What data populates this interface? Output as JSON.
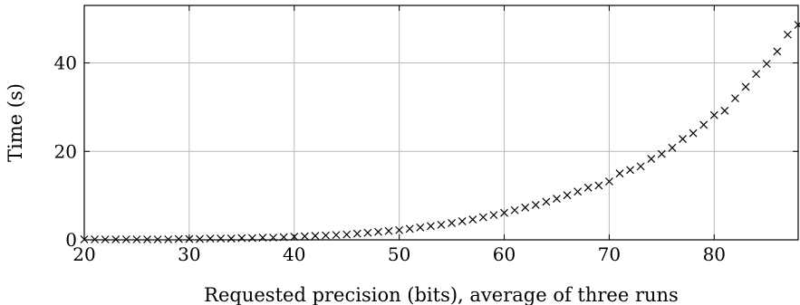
{
  "chart_data": {
    "type": "scatter",
    "title": "",
    "xlabel": "Requested precision (bits), average of three runs",
    "ylabel": "Time (s)",
    "xlim": [
      20,
      88
    ],
    "ylim": [
      0,
      53
    ],
    "grid": true,
    "marker": "x",
    "x_ticks": [
      20,
      30,
      40,
      50,
      60,
      70,
      80
    ],
    "y_ticks": [
      0,
      20,
      40
    ],
    "series": [
      {
        "name": "",
        "points": [
          [
            20,
            0.1
          ],
          [
            21,
            0.1
          ],
          [
            22,
            0.1
          ],
          [
            23,
            0.1
          ],
          [
            24,
            0.1
          ],
          [
            25,
            0.1
          ],
          [
            26,
            0.1
          ],
          [
            27,
            0.1
          ],
          [
            28,
            0.1
          ],
          [
            29,
            0.2
          ],
          [
            30,
            0.2
          ],
          [
            31,
            0.2
          ],
          [
            32,
            0.3
          ],
          [
            33,
            0.3
          ],
          [
            34,
            0.3
          ],
          [
            35,
            0.4
          ],
          [
            36,
            0.4
          ],
          [
            37,
            0.5
          ],
          [
            38,
            0.5
          ],
          [
            39,
            0.6
          ],
          [
            40,
            0.7
          ],
          [
            41,
            0.8
          ],
          [
            42,
            0.9
          ],
          [
            43,
            1.0
          ],
          [
            44,
            1.1
          ],
          [
            45,
            1.2
          ],
          [
            46,
            1.4
          ],
          [
            47,
            1.6
          ],
          [
            48,
            1.8
          ],
          [
            49,
            2.0
          ],
          [
            50,
            2.2
          ],
          [
            51,
            2.5
          ],
          [
            52,
            2.8
          ],
          [
            53,
            3.1
          ],
          [
            54,
            3.4
          ],
          [
            55,
            3.8
          ],
          [
            56,
            4.2
          ],
          [
            57,
            4.6
          ],
          [
            58,
            5.1
          ],
          [
            59,
            5.6
          ],
          [
            60,
            6.1
          ],
          [
            61,
            6.7
          ],
          [
            62,
            7.3
          ],
          [
            63,
            7.9
          ],
          [
            64,
            8.6
          ],
          [
            65,
            9.3
          ],
          [
            66,
            10.1
          ],
          [
            67,
            10.9
          ],
          [
            68,
            11.8
          ],
          [
            69,
            12.3
          ],
          [
            70,
            13.2
          ],
          [
            71,
            15.0
          ],
          [
            72,
            15.8
          ],
          [
            73,
            16.6
          ],
          [
            74,
            18.3
          ],
          [
            75,
            19.4
          ],
          [
            76,
            20.8
          ],
          [
            77,
            22.8
          ],
          [
            78,
            24.1
          ],
          [
            79,
            26.0
          ],
          [
            80,
            28.2
          ],
          [
            81,
            29.2
          ],
          [
            82,
            32.0
          ],
          [
            83,
            34.6
          ],
          [
            84,
            37.5
          ],
          [
            85,
            39.8
          ],
          [
            86,
            42.6
          ],
          [
            87,
            46.4
          ],
          [
            88,
            48.6
          ]
        ]
      }
    ]
  }
}
